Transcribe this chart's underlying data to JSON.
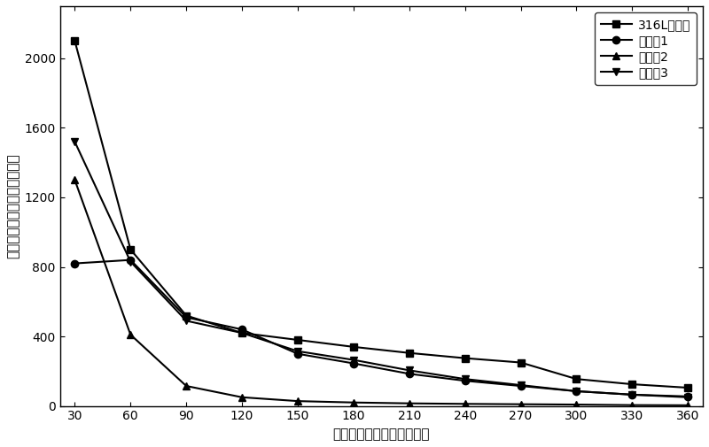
{
  "x": [
    30,
    60,
    90,
    120,
    150,
    180,
    210,
    240,
    270,
    300,
    330,
    360
  ],
  "series_order": [
    "316L不锈锂",
    "实施例1",
    "实施例2",
    "实施例3"
  ],
  "series": {
    "316L不锈锂": [
      2100,
      900,
      520,
      420,
      380,
      340,
      305,
      275,
      250,
      155,
      125,
      105
    ],
    "实施例1": [
      820,
      840,
      510,
      440,
      300,
      245,
      185,
      145,
      115,
      85,
      65,
      55
    ],
    "实施例2": [
      1300,
      410,
      115,
      50,
      28,
      20,
      15,
      12,
      10,
      8,
      5,
      4
    ],
    "实施例3": [
      1520,
      830,
      490,
      420,
      315,
      265,
      205,
      155,
      120,
      85,
      65,
      50
    ]
  },
  "markers": {
    "316L不锈锂": "s",
    "实施例1": "o",
    "实施例2": "^",
    "实施例3": "v"
  },
  "xlabel": "压紧力（牛顿每平方厘米）",
  "ylabel": "接触电阻（毫欧姆平方厘米）",
  "ylim": [
    0,
    2300
  ],
  "xlim": [
    22,
    368
  ],
  "xticks": [
    30,
    60,
    90,
    120,
    150,
    180,
    210,
    240,
    270,
    300,
    330,
    360
  ],
  "yticks": [
    0,
    400,
    800,
    1200,
    1600,
    2000
  ],
  "line_color": "#000000",
  "bg_color": "#ffffff",
  "legend_loc": "upper right",
  "fontsize_label": 11,
  "fontsize_tick": 10,
  "fontsize_legend": 10,
  "markersize": 6,
  "linewidth": 1.5
}
